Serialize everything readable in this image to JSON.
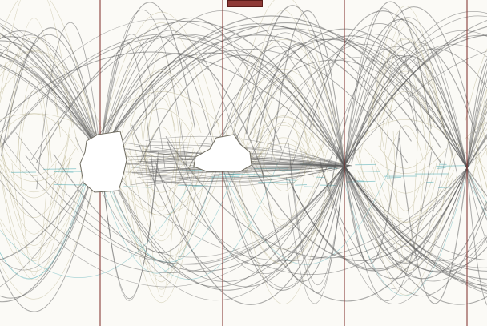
{
  "diagram": {
    "type": "arc-ribbon-graph",
    "colors": {
      "background": "#fbfaf6",
      "arc_olive": "#b8b08a",
      "arc_gray": "#5a5a5a",
      "arc_teal": "#4aa9b2",
      "axis_line": "#7d2a26",
      "cluster_fill": "#ffffff",
      "cluster_stroke": "#6e6b5f",
      "marker_fill": "#8e3a36"
    },
    "top_marker": {
      "label": ""
    }
  }
}
